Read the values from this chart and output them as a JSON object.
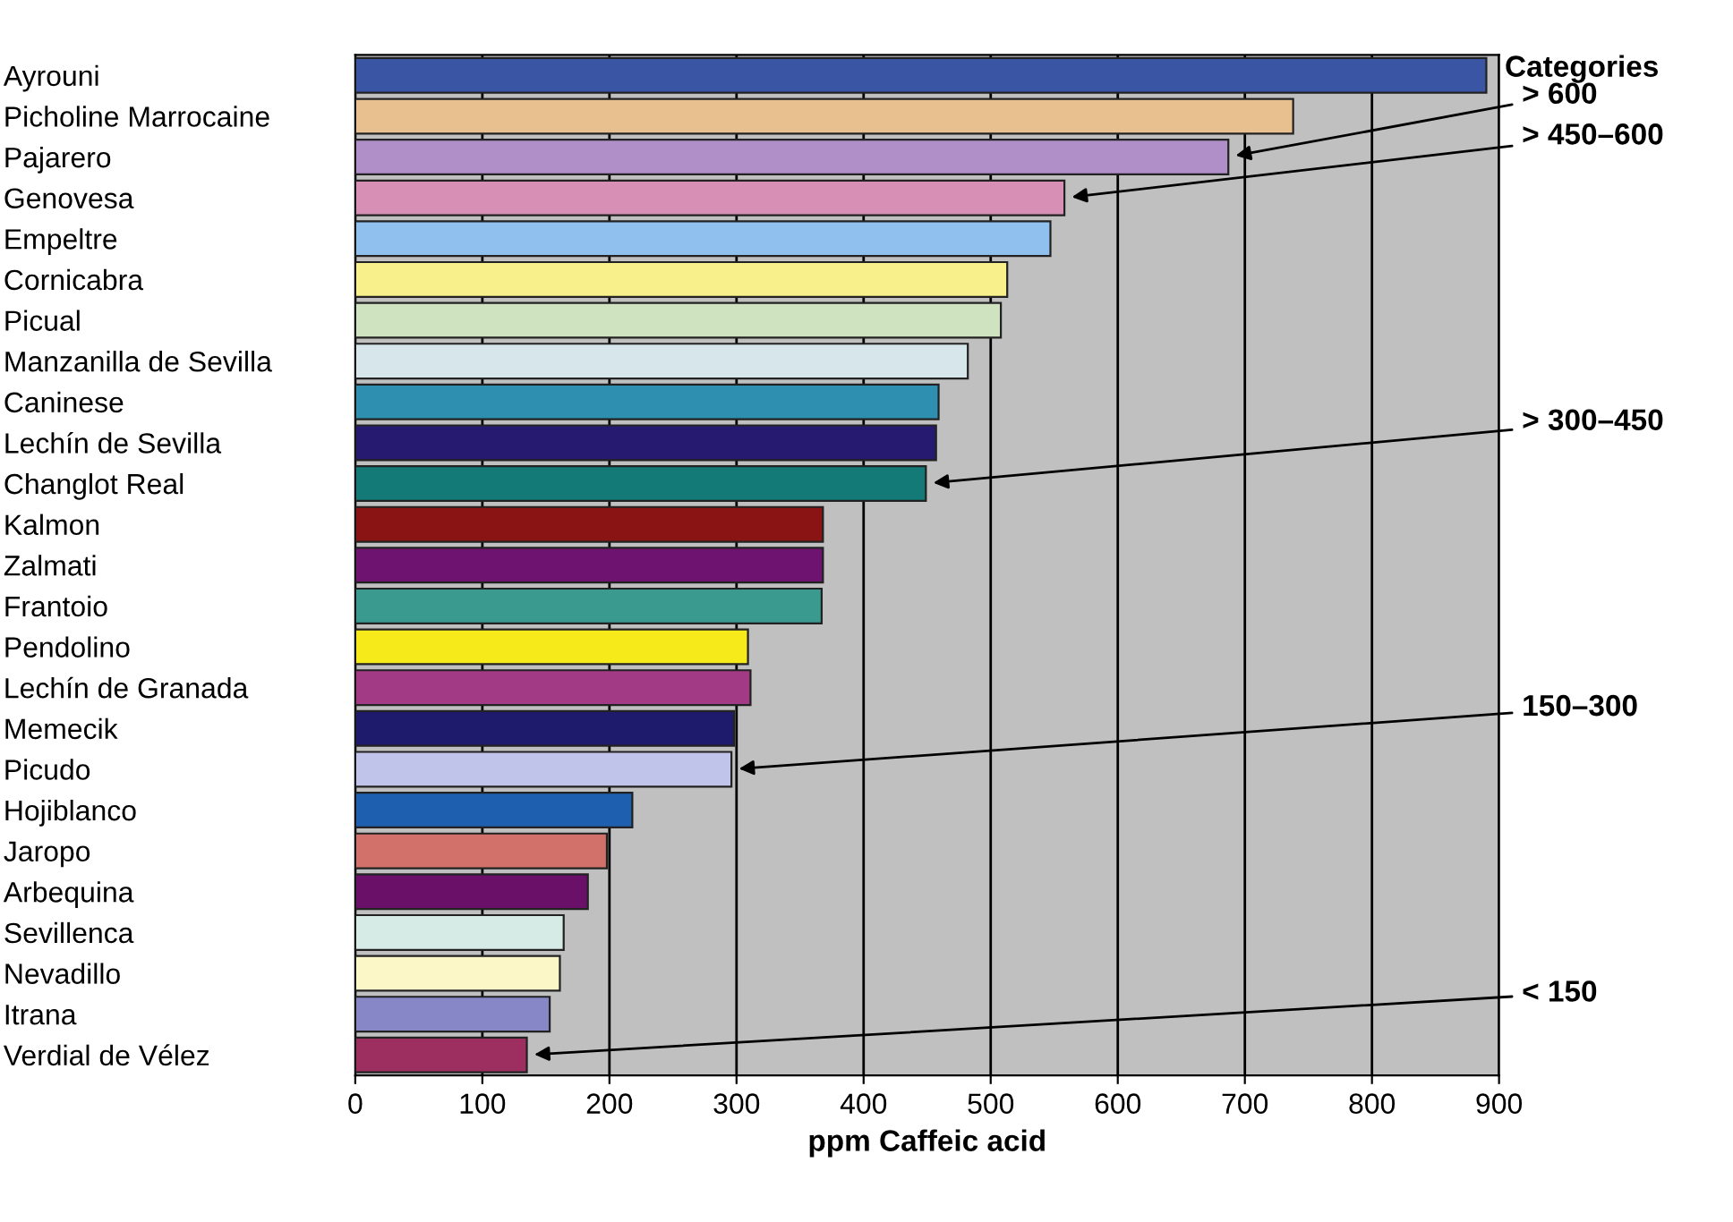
{
  "chart_data": {
    "type": "bar",
    "orientation": "horizontal",
    "xlabel": "ppm Caffeic acid",
    "legend_title": "Categories",
    "categories": [
      "Ayrouni",
      "Picholine Marrocaine",
      "Pajarero",
      "Genovesa",
      "Empeltre",
      "Cornicabra",
      "Picual",
      "Manzanilla de Sevilla",
      "Caninese",
      "Lechín de Sevilla",
      "Changlot Real",
      "Kalmon",
      "Zalmati",
      "Frantoio",
      "Pendolino",
      "Lechín de Granada",
      "Memecik",
      "Picudo",
      "Hojiblanco",
      "Jaropo",
      "Arbequina",
      "Sevillenca",
      "Nevadillo",
      "Itrana",
      "Verdial de Vélez"
    ],
    "values": [
      890,
      738,
      687,
      558,
      547,
      513,
      508,
      482,
      459,
      457,
      449,
      368,
      368,
      367,
      309,
      311,
      298,
      296,
      218,
      198,
      183,
      164,
      161,
      153,
      135
    ],
    "colors": [
      "#3b55a5",
      "#e8c08f",
      "#b08fc8",
      "#d88fb5",
      "#8fc0ee",
      "#f8f08a",
      "#cfe3c0",
      "#d6e6ea",
      "#2f8fb0",
      "#261a70",
      "#137a78",
      "#8a1414",
      "#6e1470",
      "#3a9a90",
      "#f7ea1a",
      "#a33a85",
      "#1e1a6c",
      "#c0c3ea",
      "#1f5fb0",
      "#d2706a",
      "#6a1068",
      "#d6ebe6",
      "#fbf7c6",
      "#8787c8",
      "#9c2e60"
    ],
    "xlim": [
      0,
      900
    ],
    "xticks": [
      0,
      100,
      200,
      300,
      400,
      500,
      600,
      700,
      800,
      900
    ],
    "grid": "x",
    "legend": false,
    "annotations": [
      {
        "text": "> 600",
        "x": 687,
        "y": "Pajarero"
      },
      {
        "text": "> 450–600",
        "x": 558,
        "y": "Genovesa"
      },
      {
        "text": "> 300–450",
        "x": 449,
        "y": "Changlot Real"
      },
      {
        "text": "150–300",
        "x": 296,
        "y": "Picudo"
      },
      {
        "text": "< 150",
        "x": 135,
        "y": "Verdial de Vélez"
      }
    ]
  }
}
